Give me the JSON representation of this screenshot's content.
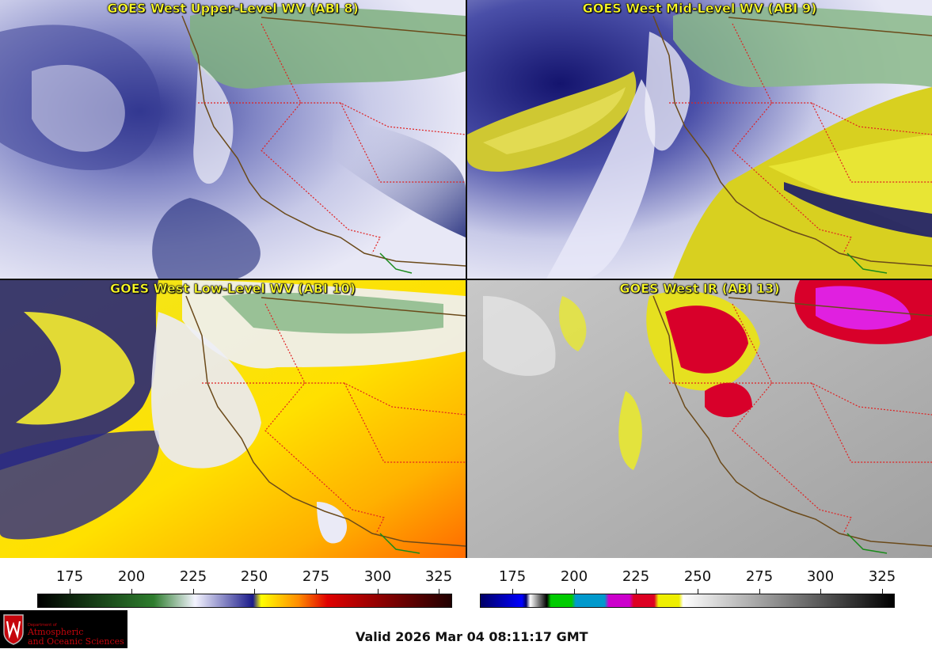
{
  "panels": {
    "upper": {
      "title": "GOES West Upper-Level WV (ABI 8)"
    },
    "mid": {
      "title": "GOES West Mid-Level WV (ABI 9)"
    },
    "low": {
      "title": "GOES West Low-Level WV (ABI 10)"
    },
    "ir": {
      "title": "GOES West IR (ABI 13)"
    }
  },
  "colorbars": {
    "wv": {
      "ticks": [
        "175",
        "200",
        "225",
        "250",
        "275",
        "300",
        "325"
      ],
      "colors": {
        "start": "#000000",
        "green": "#2e7d2e",
        "white": "#f4f4ff",
        "blue": "#1a1a8a",
        "yellow": "#ffff00",
        "orange": "#ff8c00",
        "red": "#e00000",
        "end": "#200000"
      }
    },
    "ir": {
      "ticks": [
        "175",
        "200",
        "225",
        "250",
        "275",
        "300",
        "325"
      ],
      "colors": {
        "navy": "#000066",
        "blue": "#0000ff",
        "green": "#00cc00",
        "cyan": "#0099cc",
        "magenta": "#cc00cc",
        "red": "#dd0022",
        "yellow": "#eeee00",
        "white": "#ffffff",
        "black": "#000000"
      }
    }
  },
  "logo": {
    "dept": "Department of",
    "line1": "Atmospheric",
    "line2": "and Oceanic Sciences"
  },
  "valid_time": "Valid 2026 Mar 04 08:11:17 GMT"
}
